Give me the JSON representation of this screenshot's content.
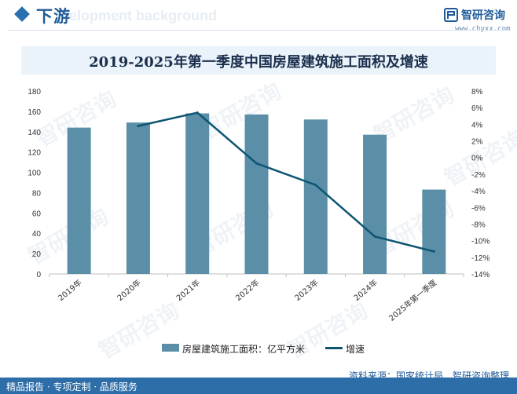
{
  "header": {
    "section_title": "下游",
    "watermark_title": "elopment background",
    "brand_name": "智研咨询",
    "brand_url": "www.chyxx.com",
    "brand_color": "#1f5b9a"
  },
  "watermark": {
    "text": "智研咨询"
  },
  "chart_data": {
    "type": "bar",
    "title": "2019-2025年第一季度中国房屋建筑施工面积及增速",
    "categories": [
      "2019年",
      "2020年",
      "2021年",
      "2022年",
      "2023年",
      "2024年",
      "2025年第一季度"
    ],
    "series": [
      {
        "name": "房屋建筑施工面积：亿平方米",
        "type": "bar",
        "axis": "left",
        "color": "#5b8fa8",
        "values": [
          144,
          149,
          158,
          157,
          152,
          137,
          83
        ]
      },
      {
        "name": "增速",
        "type": "line",
        "axis": "right",
        "color": "#0d5573",
        "values": [
          null,
          3.8,
          5.4,
          -0.7,
          -3.3,
          -9.5,
          -11.3
        ]
      }
    ],
    "y_left": {
      "min": 0,
      "max": 180,
      "ticks": [
        "0",
        "20",
        "40",
        "60",
        "80",
        "100",
        "120",
        "140",
        "160",
        "180"
      ]
    },
    "y_right": {
      "min": -14,
      "max": 8,
      "ticks": [
        "-14%",
        "-12%",
        "-10%",
        "-8%",
        "-6%",
        "-4%",
        "-2%",
        "0%",
        "2%",
        "4%",
        "6%",
        "8%"
      ]
    },
    "grid": false,
    "legend_position": "bottom"
  },
  "source": "资料来源：国家统计局、智研咨询整理",
  "footer": {
    "text": "精品报告 · 专项定制 · 品质服务"
  }
}
